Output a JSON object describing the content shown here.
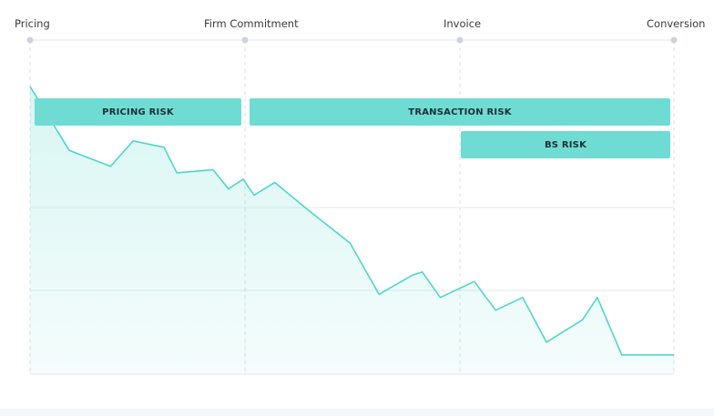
{
  "chart_data": {
    "type": "area",
    "title": "",
    "xlabel": "",
    "ylabel": "",
    "stages": [
      "Pricing",
      "Firm Commitment",
      "Invoice",
      "Conversion"
    ],
    "x": [
      0,
      0.061,
      0.125,
      0.16,
      0.208,
      0.228,
      0.284,
      0.308,
      0.331,
      0.348,
      0.38,
      0.428,
      0.497,
      0.542,
      0.594,
      0.609,
      0.637,
      0.69,
      0.723,
      0.765,
      0.802,
      0.858,
      0.881,
      0.919,
      1.0
    ],
    "y": [
      0.9,
      0.7,
      0.65,
      0.73,
      0.71,
      0.63,
      0.64,
      0.58,
      0.61,
      0.56,
      0.6,
      0.52,
      0.41,
      0.25,
      0.31,
      0.32,
      0.24,
      0.29,
      0.2,
      0.24,
      0.1,
      0.17,
      0.24,
      0.06,
      0.06
    ],
    "ylim": [
      0,
      1
    ],
    "grid": true,
    "line_color": "#4fd6cb",
    "fill_color": "#e3f6f5",
    "bands": [
      {
        "label": "PRICING RISK",
        "from_stage": 0,
        "to_stage": 1,
        "row": 0
      },
      {
        "label": "TRANSACTION RISK",
        "from_stage": 1,
        "to_stage": 3,
        "row": 0
      },
      {
        "label": "BS RISK",
        "from_stage": 2,
        "to_stage": 3,
        "row": 1
      }
    ],
    "band_color": "#6fdcd4"
  }
}
